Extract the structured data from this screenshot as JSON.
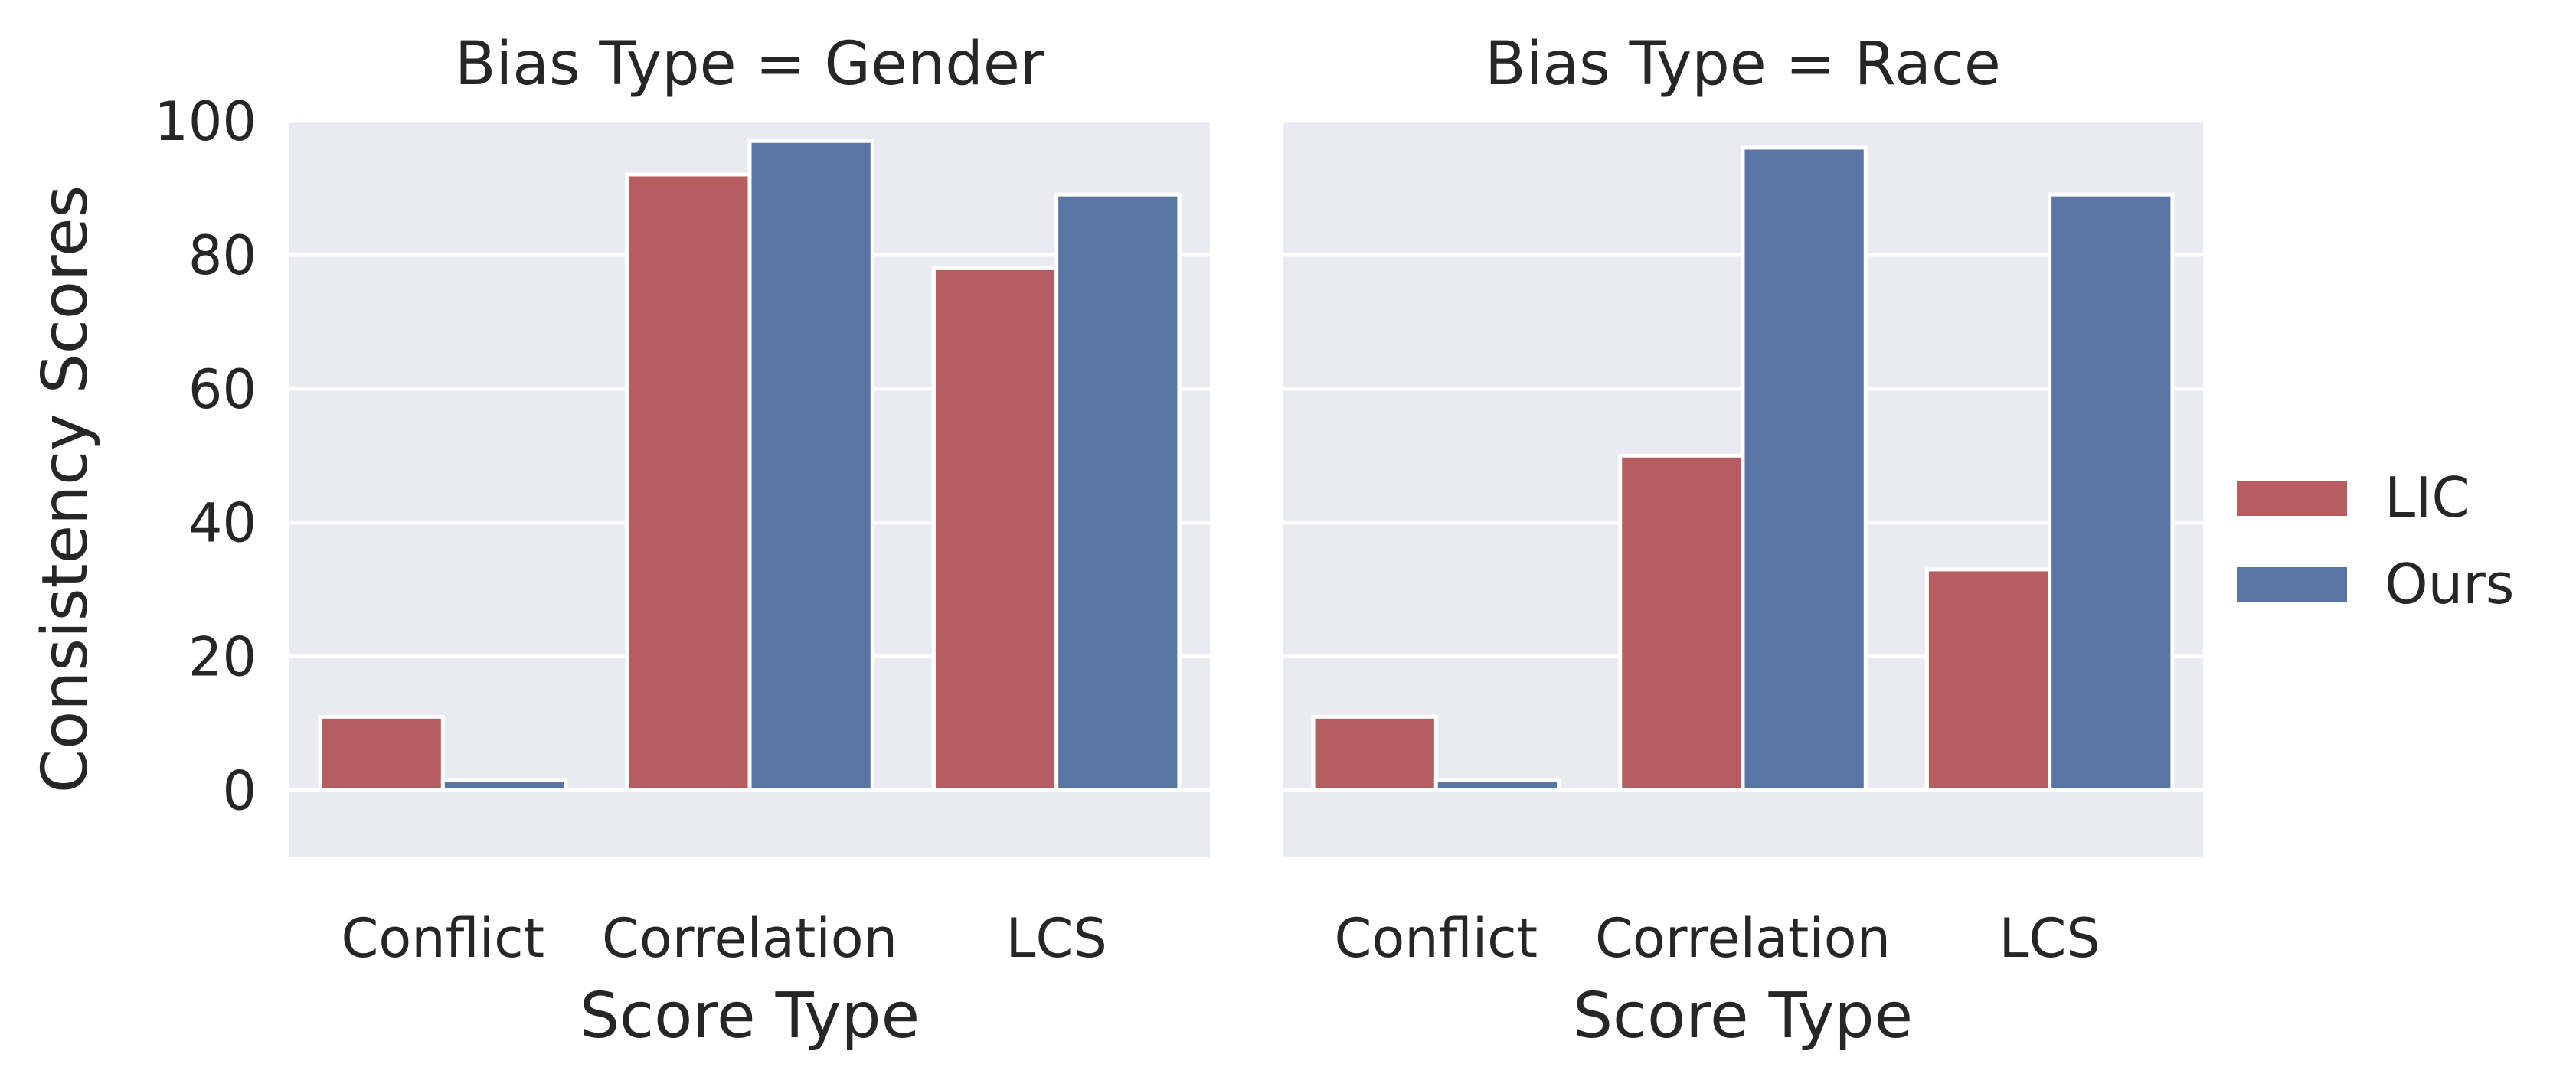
{
  "chart_data": {
    "type": "bar",
    "facet_variable": "Bias Type",
    "panels": [
      {
        "title": "Bias Type = Gender",
        "categories": [
          "Conflict",
          "Correlation",
          "LCS"
        ],
        "series": [
          {
            "name": "LIC",
            "values": [
              11,
              92,
              78
            ]
          },
          {
            "name": "Ours",
            "values": [
              1.5,
              97,
              89
            ]
          }
        ]
      },
      {
        "title": "Bias Type = Race",
        "categories": [
          "Conflict",
          "Correlation",
          "LCS"
        ],
        "series": [
          {
            "name": "LIC",
            "values": [
              11,
              50,
              33
            ]
          },
          {
            "name": "Ours",
            "values": [
              1.5,
              96,
              89
            ]
          }
        ]
      }
    ],
    "xlabel": "Score Type",
    "ylabel": "Consistency Scores",
    "ylim": [
      -10,
      100
    ],
    "yticks": [
      0,
      20,
      40,
      60,
      80,
      100
    ],
    "grid": true,
    "legend": {
      "placement": "right",
      "entries": [
        {
          "label": "LIC",
          "color": "#b55d60"
        },
        {
          "label": "Ours",
          "color": "#5975a4"
        }
      ]
    },
    "colors": {
      "LIC": "#b55d60",
      "Ours": "#5975a4",
      "panel_background": "#eaeaf2",
      "grid": "#ffffff"
    }
  }
}
